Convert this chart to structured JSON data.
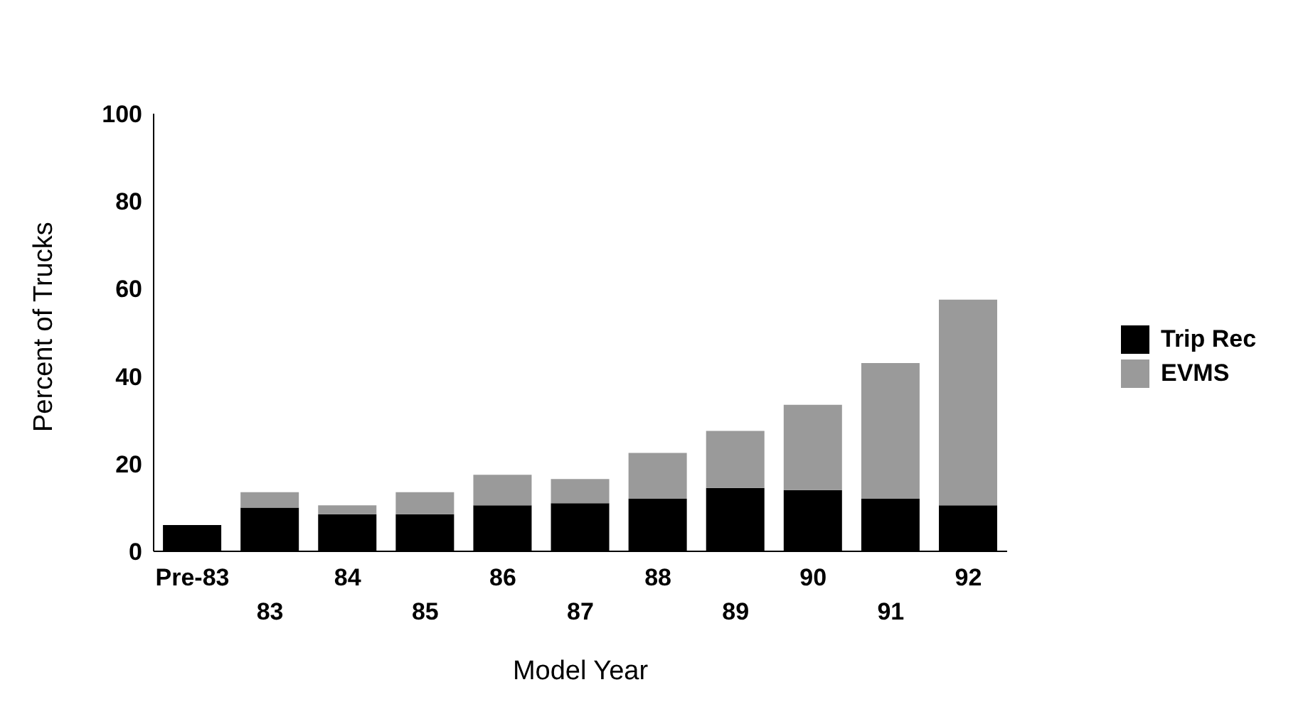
{
  "chart_data": {
    "type": "bar",
    "xlabel": "Model Year",
    "ylabel": "Percent of Trucks",
    "categories": [
      "Pre-83",
      "83",
      "84",
      "85",
      "86",
      "87",
      "88",
      "89",
      "90",
      "91",
      "92"
    ],
    "stacked": true,
    "series": [
      {
        "name": "Trip Rec",
        "color": "#000000",
        "values": [
          6,
          10,
          8.5,
          8.5,
          10.5,
          11,
          12,
          14.5,
          14,
          12,
          10.5
        ]
      },
      {
        "name": "EVMS",
        "color": "#9a9a9a",
        "values": [
          0,
          3.5,
          2,
          5,
          7,
          5.5,
          10.5,
          13,
          19.5,
          31,
          47
        ]
      }
    ],
    "ylim": [
      0,
      100
    ],
    "yticks": [
      0,
      20,
      40,
      60,
      80,
      100
    ],
    "grid": false,
    "legend": "right"
  }
}
